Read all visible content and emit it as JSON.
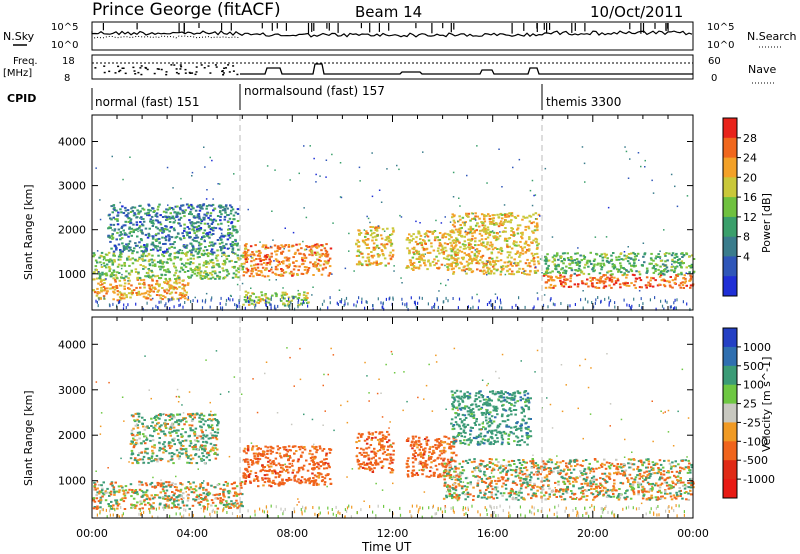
{
  "header": {
    "station": "Prince George (fitACF)",
    "beam": "Beam 14",
    "date": "10/Oct/2011"
  },
  "noise_panel": {
    "left_label": "N.Sky",
    "right_label": "N.Search",
    "tick_top": "10^5",
    "tick_bottom": "10^0"
  },
  "freq_panel": {
    "left_label_1": "Freq.",
    "left_label_2": "[MHz]",
    "right_label": "Nave",
    "left_ticks": [
      "18",
      "8"
    ],
    "right_ticks": [
      "60",
      "0"
    ]
  },
  "cpid": {
    "label": "CPID",
    "segments": [
      {
        "name": "normal (fast) 151",
        "start_hour": 0.0
      },
      {
        "name": "normalsound (fast) 157",
        "start_hour": 6.0
      },
      {
        "name": "themis 3300",
        "start_hour": 18.0
      }
    ]
  },
  "colorbar_power": {
    "title": "Power [dB]",
    "ticks": [
      "28",
      "24",
      "20",
      "16",
      "12",
      "8",
      "4"
    ],
    "colors": [
      "#e8231b",
      "#f0671d",
      "#f3a128",
      "#c9c83a",
      "#6fc13f",
      "#3a9f6b",
      "#3a7c8c",
      "#2f56b8",
      "#1f2fd6"
    ]
  },
  "colorbar_velocity": {
    "title": "Velocity [m s^-1]",
    "ticks": [
      "1000",
      "500",
      "100",
      "25",
      "-25",
      "-100",
      "-500",
      "-1000"
    ],
    "colors": [
      "#2440c4",
      "#2f6fb0",
      "#3b9b76",
      "#6ec742",
      "#c8c8c0",
      "#f09a24",
      "#f0641c",
      "#e02a16",
      "#e81a14"
    ]
  },
  "chart_data": [
    {
      "type": "heatmap",
      "title": "Power",
      "xlabel": "Time UT",
      "ylabel": "Slant Range [km]",
      "x_ticks": [
        "00:00",
        "04:00",
        "08:00",
        "12:00",
        "16:00",
        "20:00",
        "00:00"
      ],
      "y_ticks": [
        "1000",
        "2000",
        "3000",
        "4000"
      ],
      "xlim_hours": [
        0,
        24
      ],
      "ylim_km": [
        180,
        4600
      ],
      "colorbar": "Power [dB]",
      "blobs": [
        {
          "t0": 0.0,
          "t1": 3.9,
          "r0": 420,
          "r1": 900,
          "db": 22
        },
        {
          "t0": 0.0,
          "t1": 6.0,
          "r0": 900,
          "r1": 1500,
          "db": 14
        },
        {
          "t0": 0.6,
          "t1": 5.8,
          "r0": 1500,
          "r1": 2600,
          "db": 8
        },
        {
          "t0": 6.0,
          "t1": 9.5,
          "r0": 950,
          "r1": 1700,
          "db": 24
        },
        {
          "t0": 6.0,
          "t1": 8.6,
          "r0": 300,
          "r1": 620,
          "db": 16
        },
        {
          "t0": 10.5,
          "t1": 12.0,
          "r0": 1200,
          "r1": 2100,
          "db": 20
        },
        {
          "t0": 12.5,
          "t1": 14.5,
          "r0": 1100,
          "r1": 2000,
          "db": 20
        },
        {
          "t0": 14.3,
          "t1": 17.8,
          "r0": 1000,
          "r1": 2400,
          "db": 20
        },
        {
          "t0": 18.0,
          "t1": 24.0,
          "r0": 700,
          "r1": 1000,
          "db": 26
        },
        {
          "t0": 18.0,
          "t1": 24.0,
          "r0": 1000,
          "r1": 1500,
          "db": 12
        }
      ]
    },
    {
      "type": "heatmap",
      "title": "Velocity",
      "xlabel": "Time UT",
      "ylabel": "Slant Range [km]",
      "x_ticks": [
        "00:00",
        "04:00",
        "08:00",
        "12:00",
        "16:00",
        "20:00",
        "00:00"
      ],
      "y_ticks": [
        "1000",
        "2000",
        "3000",
        "4000"
      ],
      "xlim_hours": [
        0,
        24
      ],
      "ylim_km": [
        180,
        4600
      ],
      "colorbar": "Velocity [m s^-1]",
      "blobs": [
        {
          "t0": 0.0,
          "t1": 6.0,
          "r0": 400,
          "r1": 1000,
          "vel": 0
        },
        {
          "t0": 1.5,
          "t1": 5.0,
          "r0": 1400,
          "r1": 2500,
          "vel": 100
        },
        {
          "t0": 6.0,
          "t1": 9.5,
          "r0": 900,
          "r1": 1800,
          "vel": -300
        },
        {
          "t0": 10.5,
          "t1": 12.0,
          "r0": 1200,
          "r1": 2100,
          "vel": -300
        },
        {
          "t0": 12.5,
          "t1": 14.5,
          "r0": 1100,
          "r1": 2000,
          "vel": -300
        },
        {
          "t0": 14.3,
          "t1": 17.5,
          "r0": 1800,
          "r1": 3000,
          "vel": 300
        },
        {
          "t0": 14.0,
          "t1": 24.0,
          "r0": 600,
          "r1": 1500,
          "vel": 0
        }
      ]
    }
  ],
  "time_axis_label": "Time UT"
}
